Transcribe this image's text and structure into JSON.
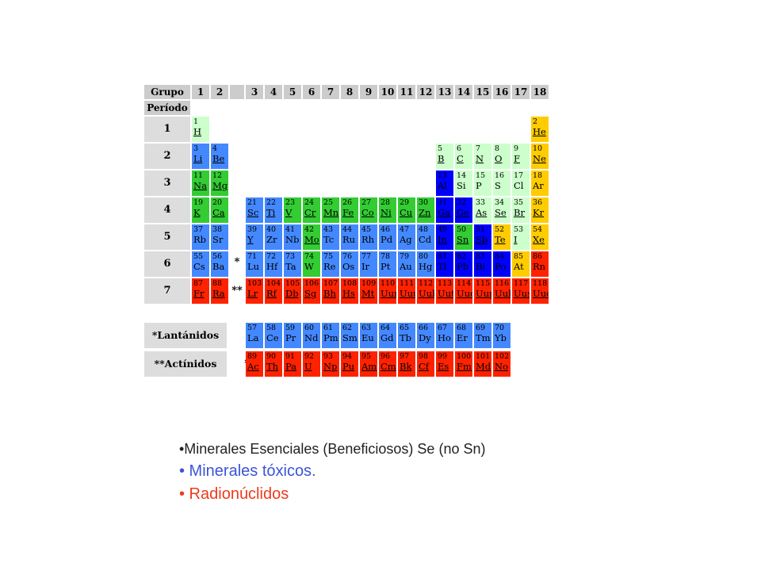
{
  "table": {
    "group_label": "Grupo",
    "period_label": "Período",
    "groups": [
      "1",
      "2",
      "3",
      "4",
      "5",
      "6",
      "7",
      "8",
      "9",
      "10",
      "11",
      "12",
      "13",
      "14",
      "15",
      "16",
      "17",
      "18"
    ],
    "periods": [
      "1",
      "2",
      "3",
      "4",
      "5",
      "6",
      "7"
    ],
    "star_mark": "*",
    "double_star_mark": "**",
    "colors": {
      "green_light": "#ccffcc",
      "blue": "#0000ff",
      "blue_light": "#4488ff",
      "green": "#33cc33",
      "yellow": "#ffcc00",
      "red": "#ff2200"
    },
    "elements": [
      {
        "n": "1",
        "s": "H",
        "g": 1,
        "p": 1,
        "c": "#ccffcc",
        "u": true
      },
      {
        "n": "2",
        "s": "He",
        "g": 18,
        "p": 1,
        "c": "#ffcc00",
        "u": true
      },
      {
        "n": "3",
        "s": "Li",
        "g": 1,
        "p": 2,
        "c": "#4488ff",
        "u": true
      },
      {
        "n": "4",
        "s": "Be",
        "g": 2,
        "p": 2,
        "c": "#4488ff",
        "u": true
      },
      {
        "n": "5",
        "s": "B",
        "g": 13,
        "p": 2,
        "c": "#ccffcc",
        "u": true
      },
      {
        "n": "6",
        "s": "C",
        "g": 14,
        "p": 2,
        "c": "#ccffcc",
        "u": true
      },
      {
        "n": "7",
        "s": "N",
        "g": 15,
        "p": 2,
        "c": "#ccffcc",
        "u": true
      },
      {
        "n": "8",
        "s": "O",
        "g": 16,
        "p": 2,
        "c": "#ccffcc",
        "u": true
      },
      {
        "n": "9",
        "s": "F",
        "g": 17,
        "p": 2,
        "c": "#ccffcc",
        "u": true
      },
      {
        "n": "10",
        "s": "Ne",
        "g": 18,
        "p": 2,
        "c": "#ffcc00",
        "u": true
      },
      {
        "n": "11",
        "s": "Na",
        "g": 1,
        "p": 3,
        "c": "#33cc33",
        "u": true
      },
      {
        "n": "12",
        "s": "Mg",
        "g": 2,
        "p": 3,
        "c": "#33cc33",
        "u": true
      },
      {
        "n": "13",
        "s": "Al",
        "g": 13,
        "p": 3,
        "c": "#0000ff",
        "u": false
      },
      {
        "n": "14",
        "s": "Si",
        "g": 14,
        "p": 3,
        "c": "#ccffcc",
        "u": false
      },
      {
        "n": "15",
        "s": "P",
        "g": 15,
        "p": 3,
        "c": "#ccffcc",
        "u": false
      },
      {
        "n": "16",
        "s": "S",
        "g": 16,
        "p": 3,
        "c": "#ccffcc",
        "u": false
      },
      {
        "n": "17",
        "s": "Cl",
        "g": 17,
        "p": 3,
        "c": "#ccffcc",
        "u": false
      },
      {
        "n": "18",
        "s": "Ar",
        "g": 18,
        "p": 3,
        "c": "#ffcc00",
        "u": false
      },
      {
        "n": "19",
        "s": "K",
        "g": 1,
        "p": 4,
        "c": "#33cc33",
        "u": true
      },
      {
        "n": "20",
        "s": "Ca",
        "g": 2,
        "p": 4,
        "c": "#33cc33",
        "u": true
      },
      {
        "n": "21",
        "s": "Sc",
        "g": 3,
        "p": 4,
        "c": "#4488ff",
        "u": true
      },
      {
        "n": "22",
        "s": "Ti",
        "g": 4,
        "p": 4,
        "c": "#4488ff",
        "u": true
      },
      {
        "n": "23",
        "s": "V",
        "g": 5,
        "p": 4,
        "c": "#33cc33",
        "u": true
      },
      {
        "n": "24",
        "s": "Cr",
        "g": 6,
        "p": 4,
        "c": "#33cc33",
        "u": true
      },
      {
        "n": "25",
        "s": "Mn",
        "g": 7,
        "p": 4,
        "c": "#33cc33",
        "u": true
      },
      {
        "n": "26",
        "s": "Fe",
        "g": 8,
        "p": 4,
        "c": "#33cc33",
        "u": true
      },
      {
        "n": "27",
        "s": "Co",
        "g": 9,
        "p": 4,
        "c": "#33cc33",
        "u": true
      },
      {
        "n": "28",
        "s": "Ni",
        "g": 10,
        "p": 4,
        "c": "#33cc33",
        "u": true
      },
      {
        "n": "29",
        "s": "Cu",
        "g": 11,
        "p": 4,
        "c": "#33cc33",
        "u": true
      },
      {
        "n": "30",
        "s": "Zn",
        "g": 12,
        "p": 4,
        "c": "#33cc33",
        "u": true
      },
      {
        "n": "31",
        "s": "Ga",
        "g": 13,
        "p": 4,
        "c": "#0000ff",
        "u": true
      },
      {
        "n": "32",
        "s": "Ge",
        "g": 14,
        "p": 4,
        "c": "#0000ff",
        "u": true
      },
      {
        "n": "33",
        "s": "As",
        "g": 15,
        "p": 4,
        "c": "#ccffcc",
        "u": true
      },
      {
        "n": "34",
        "s": "Se",
        "g": 16,
        "p": 4,
        "c": "#ccffcc",
        "u": true
      },
      {
        "n": "35",
        "s": "Br",
        "g": 17,
        "p": 4,
        "c": "#ccffcc",
        "u": true
      },
      {
        "n": "36",
        "s": "Kr",
        "g": 18,
        "p": 4,
        "c": "#ffcc00",
        "u": true
      },
      {
        "n": "37",
        "s": "Rb",
        "g": 1,
        "p": 5,
        "c": "#4488ff",
        "u": false
      },
      {
        "n": "38",
        "s": "Sr",
        "g": 2,
        "p": 5,
        "c": "#4488ff",
        "u": false
      },
      {
        "n": "39",
        "s": "Y",
        "g": 3,
        "p": 5,
        "c": "#4488ff",
        "u": true
      },
      {
        "n": "40",
        "s": "Zr",
        "g": 4,
        "p": 5,
        "c": "#4488ff",
        "u": false
      },
      {
        "n": "41",
        "s": "Nb",
        "g": 5,
        "p": 5,
        "c": "#4488ff",
        "u": false
      },
      {
        "n": "42",
        "s": "Mo",
        "g": 6,
        "p": 5,
        "c": "#33cc33",
        "u": true
      },
      {
        "n": "43",
        "s": "Tc",
        "g": 7,
        "p": 5,
        "c": "#4488ff",
        "u": false
      },
      {
        "n": "44",
        "s": "Ru",
        "g": 8,
        "p": 5,
        "c": "#4488ff",
        "u": false
      },
      {
        "n": "45",
        "s": "Rh",
        "g": 9,
        "p": 5,
        "c": "#4488ff",
        "u": false
      },
      {
        "n": "46",
        "s": "Pd",
        "g": 10,
        "p": 5,
        "c": "#4488ff",
        "u": false
      },
      {
        "n": "47",
        "s": "Ag",
        "g": 11,
        "p": 5,
        "c": "#4488ff",
        "u": false
      },
      {
        "n": "48",
        "s": "Cd",
        "g": 12,
        "p": 5,
        "c": "#4488ff",
        "u": false
      },
      {
        "n": "49",
        "s": "In",
        "g": 13,
        "p": 5,
        "c": "#0000ff",
        "u": true
      },
      {
        "n": "50",
        "s": "Sn",
        "g": 14,
        "p": 5,
        "c": "#33cc33",
        "u": true
      },
      {
        "n": "51",
        "s": "Sb",
        "g": 15,
        "p": 5,
        "c": "#0000ff",
        "u": true
      },
      {
        "n": "52",
        "s": "Te",
        "g": 16,
        "p": 5,
        "c": "#ffcc00",
        "u": true
      },
      {
        "n": "53",
        "s": "I",
        "g": 17,
        "p": 5,
        "c": "#ccffcc",
        "u": true
      },
      {
        "n": "54",
        "s": "Xe",
        "g": 18,
        "p": 5,
        "c": "#ffcc00",
        "u": true
      },
      {
        "n": "55",
        "s": "Cs",
        "g": 1,
        "p": 6,
        "c": "#4488ff",
        "u": false
      },
      {
        "n": "56",
        "s": "Ba",
        "g": 2,
        "p": 6,
        "c": "#4488ff",
        "u": false
      },
      {
        "n": "71",
        "s": "Lu",
        "g": 3,
        "p": 6,
        "c": "#4488ff",
        "u": false
      },
      {
        "n": "72",
        "s": "Hf",
        "g": 4,
        "p": 6,
        "c": "#4488ff",
        "u": false
      },
      {
        "n": "73",
        "s": "Ta",
        "g": 5,
        "p": 6,
        "c": "#4488ff",
        "u": false
      },
      {
        "n": "74",
        "s": "W",
        "g": 6,
        "p": 6,
        "c": "#33cc33",
        "u": false
      },
      {
        "n": "75",
        "s": "Re",
        "g": 7,
        "p": 6,
        "c": "#4488ff",
        "u": false
      },
      {
        "n": "76",
        "s": "Os",
        "g": 8,
        "p": 6,
        "c": "#4488ff",
        "u": false
      },
      {
        "n": "77",
        "s": "Ir",
        "g": 9,
        "p": 6,
        "c": "#4488ff",
        "u": false
      },
      {
        "n": "78",
        "s": "Pt",
        "g": 10,
        "p": 6,
        "c": "#4488ff",
        "u": false
      },
      {
        "n": "79",
        "s": "Au",
        "g": 11,
        "p": 6,
        "c": "#4488ff",
        "u": false
      },
      {
        "n": "80",
        "s": "Hg",
        "g": 12,
        "p": 6,
        "c": "#4488ff",
        "u": false
      },
      {
        "n": "81",
        "s": "Tl",
        "g": 13,
        "p": 6,
        "c": "#0000ff",
        "u": false
      },
      {
        "n": "82",
        "s": "Pb",
        "g": 14,
        "p": 6,
        "c": "#0000ff",
        "u": false
      },
      {
        "n": "83",
        "s": "Bi",
        "g": 15,
        "p": 6,
        "c": "#0000ff",
        "u": false
      },
      {
        "n": "84",
        "s": "Po",
        "g": 16,
        "p": 6,
        "c": "#0000ff",
        "u": false
      },
      {
        "n": "85",
        "s": "At",
        "g": 17,
        "p": 6,
        "c": "#ffcc00",
        "u": false
      },
      {
        "n": "86",
        "s": "Rn",
        "g": 18,
        "p": 6,
        "c": "#ff2200",
        "u": false
      },
      {
        "n": "87",
        "s": "Fr",
        "g": 1,
        "p": 7,
        "c": "#ff2200",
        "u": true
      },
      {
        "n": "88",
        "s": "Ra",
        "g": 2,
        "p": 7,
        "c": "#ff2200",
        "u": true
      },
      {
        "n": "103",
        "s": "Lr",
        "g": 3,
        "p": 7,
        "c": "#ff2200",
        "u": true
      },
      {
        "n": "104",
        "s": "Rf",
        "g": 4,
        "p": 7,
        "c": "#ff2200",
        "u": true
      },
      {
        "n": "105",
        "s": "Db",
        "g": 5,
        "p": 7,
        "c": "#ff2200",
        "u": true
      },
      {
        "n": "106",
        "s": "Sg",
        "g": 6,
        "p": 7,
        "c": "#ff2200",
        "u": true
      },
      {
        "n": "107",
        "s": "Bh",
        "g": 7,
        "p": 7,
        "c": "#ff2200",
        "u": true
      },
      {
        "n": "108",
        "s": "Hs",
        "g": 8,
        "p": 7,
        "c": "#ff2200",
        "u": true
      },
      {
        "n": "109",
        "s": "Mt",
        "g": 9,
        "p": 7,
        "c": "#ff2200",
        "u": true
      },
      {
        "n": "110",
        "s": "Uun",
        "g": 10,
        "p": 7,
        "c": "#ff2200",
        "u": true
      },
      {
        "n": "111",
        "s": "Uuu",
        "g": 11,
        "p": 7,
        "c": "#ff2200",
        "u": true
      },
      {
        "n": "112",
        "s": "Uub",
        "g": 12,
        "p": 7,
        "c": "#ff2200",
        "u": true
      },
      {
        "n": "113",
        "s": "Uut",
        "g": 13,
        "p": 7,
        "c": "#ff2200",
        "u": true
      },
      {
        "n": "114",
        "s": "Uuq",
        "g": 14,
        "p": 7,
        "c": "#ff2200",
        "u": true
      },
      {
        "n": "115",
        "s": "Uup",
        "g": 15,
        "p": 7,
        "c": "#ff2200",
        "u": true
      },
      {
        "n": "116",
        "s": "Uuh",
        "g": 16,
        "p": 7,
        "c": "#ff2200",
        "u": true
      },
      {
        "n": "117",
        "s": "Uus",
        "g": 17,
        "p": 7,
        "c": "#ff2200",
        "u": true
      },
      {
        "n": "118",
        "s": "Uuo",
        "g": 18,
        "p": 7,
        "c": "#ff2200",
        "u": true
      }
    ],
    "lanthanides_label": "*Lantánidos",
    "actinides_label": "**Actínidos",
    "lanthanides": [
      {
        "n": "57",
        "s": "La",
        "c": "#4488ff",
        "u": false
      },
      {
        "n": "58",
        "s": "Ce",
        "c": "#4488ff",
        "u": false
      },
      {
        "n": "59",
        "s": "Pr",
        "c": "#4488ff",
        "u": false
      },
      {
        "n": "60",
        "s": "Nd",
        "c": "#4488ff",
        "u": false
      },
      {
        "n": "61",
        "s": "Pm",
        "c": "#4488ff",
        "u": false
      },
      {
        "n": "62",
        "s": "Sm",
        "c": "#4488ff",
        "u": false
      },
      {
        "n": "63",
        "s": "Eu",
        "c": "#4488ff",
        "u": false
      },
      {
        "n": "64",
        "s": "Gd",
        "c": "#4488ff",
        "u": false
      },
      {
        "n": "65",
        "s": "Tb",
        "c": "#4488ff",
        "u": false
      },
      {
        "n": "66",
        "s": "Dy",
        "c": "#4488ff",
        "u": false
      },
      {
        "n": "67",
        "s": "Ho",
        "c": "#4488ff",
        "u": false
      },
      {
        "n": "68",
        "s": "Er",
        "c": "#4488ff",
        "u": false
      },
      {
        "n": "69",
        "s": "Tm",
        "c": "#4488ff",
        "u": false
      },
      {
        "n": "70",
        "s": "Yb",
        "c": "#4488ff",
        "u": false
      }
    ],
    "actinides": [
      {
        "n": "89",
        "s": "Ac",
        "c": "#ff2200",
        "u": true
      },
      {
        "n": "90",
        "s": "Th",
        "c": "#ff2200",
        "u": true
      },
      {
        "n": "91",
        "s": "Pa",
        "c": "#ff2200",
        "u": true
      },
      {
        "n": "92",
        "s": "U",
        "c": "#ff2200",
        "u": true
      },
      {
        "n": "93",
        "s": "Np",
        "c": "#ff2200",
        "u": true
      },
      {
        "n": "94",
        "s": "Pu",
        "c": "#ff2200",
        "u": true
      },
      {
        "n": "95",
        "s": "Am",
        "c": "#ff2200",
        "u": true
      },
      {
        "n": "96",
        "s": "Cm",
        "c": "#ff2200",
        "u": true
      },
      {
        "n": "97",
        "s": "Bk",
        "c": "#ff2200",
        "u": true
      },
      {
        "n": "98",
        "s": "Cf",
        "c": "#ff2200",
        "u": true
      },
      {
        "n": "99",
        "s": "Es",
        "c": "#ff2200",
        "u": true
      },
      {
        "n": "100",
        "s": "Fm",
        "c": "#ff2200",
        "u": true
      },
      {
        "n": "101",
        "s": "Md",
        "c": "#ff2200",
        "u": true
      },
      {
        "n": "102",
        "s": "No",
        "c": "#ff2200",
        "u": true
      }
    ]
  },
  "legend": {
    "essential": "•Minerales Esenciales (Beneficiosos) Se (no Sn)",
    "toxic": "• Minerales tóxicos.",
    "radio": "• Radionúclidos"
  }
}
